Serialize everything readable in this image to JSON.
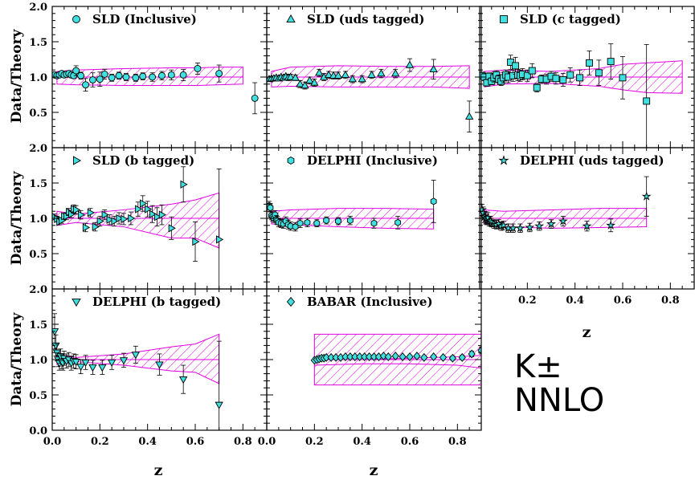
{
  "figure": {
    "ylabel": "Data/Theory",
    "xlabel": "z",
    "label_particle": "K±",
    "label_order": "NNLO"
  },
  "colors": {
    "marker_fill": "#40e0e0",
    "band": "#e000e0",
    "axes": "#000000"
  },
  "chart_data": [
    {
      "type": "scatter",
      "title": "SLD (Inclusive)",
      "marker": "circle",
      "xlim": [
        0,
        0.9
      ],
      "ylim": [
        0,
        2
      ],
      "x": [
        0.01,
        0.02,
        0.03,
        0.04,
        0.05,
        0.06,
        0.07,
        0.08,
        0.09,
        0.1,
        0.12,
        0.14,
        0.17,
        0.2,
        0.22,
        0.25,
        0.28,
        0.31,
        0.35,
        0.38,
        0.42,
        0.46,
        0.5,
        0.55,
        0.61,
        0.7,
        0.85
      ],
      "y": [
        1.03,
        1.02,
        1.03,
        1.05,
        1.03,
        1.04,
        1.05,
        1.03,
        1.02,
        1.09,
        1.02,
        0.89,
        0.96,
        0.97,
        1.04,
        0.99,
        1.02,
        1.0,
        0.99,
        1.01,
        1.0,
        1.02,
        1.03,
        1.03,
        1.12,
        1.05,
        0.7
      ],
      "err": [
        0.03,
        0.03,
        0.03,
        0.03,
        0.03,
        0.03,
        0.03,
        0.04,
        0.04,
        0.07,
        0.05,
        0.09,
        0.1,
        0.1,
        0.07,
        0.05,
        0.05,
        0.05,
        0.05,
        0.05,
        0.06,
        0.06,
        0.07,
        0.08,
        0.08,
        0.12,
        0.22
      ],
      "band_x": [
        0.02,
        0.1,
        0.3,
        0.5,
        0.6,
        0.7,
        0.8
      ],
      "band_lo": [
        0.9,
        0.89,
        0.88,
        0.88,
        0.88,
        0.89,
        0.9
      ],
      "band_hi": [
        1.08,
        1.1,
        1.12,
        1.13,
        1.13,
        1.14,
        1.14
      ]
    },
    {
      "type": "scatter",
      "title": "SLD (uds tagged)",
      "marker": "triangle-up",
      "xlim": [
        0,
        0.9
      ],
      "ylim": [
        0,
        2
      ],
      "x": [
        0.01,
        0.02,
        0.03,
        0.04,
        0.05,
        0.06,
        0.07,
        0.08,
        0.09,
        0.1,
        0.12,
        0.14,
        0.16,
        0.18,
        0.2,
        0.22,
        0.24,
        0.26,
        0.28,
        0.3,
        0.33,
        0.36,
        0.4,
        0.44,
        0.48,
        0.54,
        0.6,
        0.7,
        0.85
      ],
      "y": [
        0.97,
        0.98,
        0.98,
        0.99,
        0.98,
        1.0,
        0.99,
        1.01,
        0.99,
        1.0,
        0.99,
        0.9,
        0.88,
        0.95,
        0.92,
        1.06,
        1.0,
        1.03,
        1.02,
        1.02,
        1.03,
        0.97,
        0.97,
        1.03,
        1.05,
        1.05,
        1.17,
        1.11,
        0.44
      ],
      "err": [
        0.03,
        0.03,
        0.03,
        0.03,
        0.03,
        0.03,
        0.03,
        0.03,
        0.04,
        0.04,
        0.04,
        0.05,
        0.05,
        0.05,
        0.05,
        0.05,
        0.05,
        0.05,
        0.05,
        0.05,
        0.05,
        0.05,
        0.05,
        0.05,
        0.06,
        0.06,
        0.09,
        0.14,
        0.22
      ],
      "band_x": [
        0.02,
        0.1,
        0.3,
        0.5,
        0.7,
        0.85
      ],
      "band_lo": [
        0.86,
        0.87,
        0.86,
        0.86,
        0.86,
        0.84
      ],
      "band_hi": [
        1.08,
        1.14,
        1.16,
        1.15,
        1.15,
        1.16
      ]
    },
    {
      "type": "scatter",
      "title": "SLD (c tagged)",
      "marker": "square",
      "xlim": [
        0,
        0.9
      ],
      "ylim": [
        0,
        2
      ],
      "x": [
        0.01,
        0.02,
        0.03,
        0.04,
        0.05,
        0.06,
        0.07,
        0.08,
        0.09,
        0.1,
        0.11,
        0.12,
        0.13,
        0.14,
        0.15,
        0.16,
        0.17,
        0.18,
        0.2,
        0.22,
        0.24,
        0.26,
        0.28,
        0.3,
        0.32,
        0.35,
        0.38,
        0.42,
        0.46,
        0.5,
        0.55,
        0.6,
        0.7
      ],
      "y": [
        1.02,
        1.0,
        0.92,
        1.01,
        0.94,
        0.99,
        1.03,
        0.97,
        0.94,
        0.99,
        1.03,
        1.0,
        1.21,
        1.02,
        1.16,
        1.03,
        1.02,
        1.04,
        1.02,
        1.09,
        0.85,
        0.97,
        0.97,
        1.01,
        0.98,
        0.96,
        1.03,
        0.99,
        1.2,
        1.06,
        1.22,
        0.99,
        0.66
      ],
      "err": [
        0.05,
        0.05,
        0.05,
        0.05,
        0.05,
        0.06,
        0.06,
        0.06,
        0.06,
        0.07,
        0.07,
        0.08,
        0.1,
        0.08,
        0.12,
        0.08,
        0.08,
        0.08,
        0.08,
        0.1,
        0.06,
        0.06,
        0.07,
        0.07,
        0.08,
        0.09,
        0.1,
        0.11,
        0.17,
        0.18,
        0.25,
        0.3,
        0.8
      ],
      "band_x": [
        0.02,
        0.1,
        0.3,
        0.5,
        0.6,
        0.7,
        0.85
      ],
      "band_lo": [
        0.86,
        0.9,
        0.91,
        0.87,
        0.82,
        0.78,
        0.77
      ],
      "band_hi": [
        1.08,
        1.1,
        1.08,
        1.12,
        1.18,
        1.2,
        1.23
      ]
    },
    {
      "type": "scatter",
      "title": "SLD (b tagged)",
      "marker": "triangle-right",
      "xlim": [
        0,
        0.9
      ],
      "ylim": [
        0,
        2
      ],
      "x": [
        0.01,
        0.02,
        0.03,
        0.04,
        0.05,
        0.06,
        0.07,
        0.08,
        0.09,
        0.1,
        0.12,
        0.14,
        0.16,
        0.18,
        0.2,
        0.22,
        0.24,
        0.26,
        0.28,
        0.3,
        0.33,
        0.36,
        0.38,
        0.4,
        0.42,
        0.44,
        0.46,
        0.5,
        0.55,
        0.6,
        0.7
      ],
      "y": [
        1.02,
        0.99,
        0.95,
        0.97,
        1.03,
        1.03,
        1.09,
        1.06,
        1.13,
        1.12,
        1.05,
        0.87,
        1.08,
        0.88,
        0.96,
        1.05,
        0.98,
        0.96,
        1.0,
        0.99,
        1.0,
        1.13,
        1.21,
        1.13,
        1.06,
        1.02,
        1.05,
        0.86,
        1.48,
        0.67,
        0.7
      ],
      "err": [
        0.04,
        0.04,
        0.04,
        0.04,
        0.04,
        0.05,
        0.05,
        0.05,
        0.06,
        0.06,
        0.06,
        0.06,
        0.06,
        0.06,
        0.07,
        0.07,
        0.07,
        0.07,
        0.08,
        0.08,
        0.09,
        0.1,
        0.11,
        0.11,
        0.12,
        0.13,
        0.14,
        0.16,
        0.25,
        0.28,
        1.0
      ],
      "band_x": [
        0.02,
        0.1,
        0.3,
        0.5,
        0.6,
        0.7
      ],
      "band_lo": [
        0.9,
        0.94,
        0.88,
        0.72,
        0.72,
        0.58
      ],
      "band_hi": [
        1.1,
        1.06,
        1.12,
        1.2,
        1.26,
        1.36
      ]
    },
    {
      "type": "scatter",
      "title": "DELPHI (Inclusive)",
      "marker": "hexagon",
      "xlim": [
        0,
        0.9
      ],
      "ylim": [
        0,
        2
      ],
      "x": [
        0.01,
        0.015,
        0.02,
        0.025,
        0.03,
        0.035,
        0.04,
        0.045,
        0.05,
        0.06,
        0.07,
        0.08,
        0.09,
        0.1,
        0.12,
        0.14,
        0.17,
        0.21,
        0.25,
        0.3,
        0.35,
        0.45,
        0.55,
        0.7
      ],
      "y": [
        1.18,
        1.15,
        1.04,
        1.02,
        1.0,
        1.05,
        0.98,
        0.97,
        0.94,
        0.93,
        0.92,
        0.96,
        0.91,
        0.89,
        0.88,
        0.93,
        0.94,
        0.93,
        0.97,
        0.96,
        0.97,
        0.93,
        0.94,
        1.24
      ],
      "err": [
        0.06,
        0.06,
        0.06,
        0.06,
        0.06,
        0.06,
        0.06,
        0.06,
        0.06,
        0.06,
        0.06,
        0.06,
        0.06,
        0.06,
        0.06,
        0.06,
        0.06,
        0.05,
        0.05,
        0.05,
        0.06,
        0.07,
        0.09,
        0.3
      ],
      "band_x": [
        0.02,
        0.1,
        0.3,
        0.5,
        0.7
      ],
      "band_lo": [
        0.92,
        0.91,
        0.88,
        0.86,
        0.85
      ],
      "band_hi": [
        1.1,
        1.12,
        1.14,
        1.14,
        1.13
      ]
    },
    {
      "type": "scatter",
      "title": "DELPHI (uds tagged)",
      "marker": "star",
      "xlim": [
        0,
        0.9
      ],
      "ylim": [
        0,
        2
      ],
      "x": [
        0.01,
        0.015,
        0.02,
        0.025,
        0.03,
        0.035,
        0.04,
        0.045,
        0.05,
        0.06,
        0.07,
        0.08,
        0.09,
        0.1,
        0.12,
        0.14,
        0.17,
        0.21,
        0.25,
        0.3,
        0.35,
        0.45,
        0.55,
        0.7
      ],
      "y": [
        1.12,
        1.08,
        1.02,
        1.0,
        0.98,
        1.01,
        0.96,
        0.96,
        0.94,
        0.92,
        0.91,
        0.92,
        0.89,
        0.9,
        0.86,
        0.86,
        0.86,
        0.87,
        0.89,
        0.92,
        0.96,
        0.89,
        0.9,
        1.31
      ],
      "err": [
        0.08,
        0.08,
        0.08,
        0.08,
        0.07,
        0.07,
        0.07,
        0.07,
        0.06,
        0.06,
        0.06,
        0.06,
        0.06,
        0.06,
        0.06,
        0.06,
        0.06,
        0.06,
        0.06,
        0.06,
        0.07,
        0.07,
        0.09,
        0.28
      ],
      "band_x": [
        0.02,
        0.1,
        0.3,
        0.5,
        0.7
      ],
      "band_lo": [
        0.93,
        0.88,
        0.86,
        0.87,
        0.88
      ],
      "band_hi": [
        1.12,
        1.1,
        1.12,
        1.14,
        1.14
      ]
    },
    {
      "type": "scatter",
      "title": "DELPHI (b tagged)",
      "marker": "triangle-down",
      "xlim": [
        0,
        0.9
      ],
      "ylim": [
        0,
        2
      ],
      "x": [
        0.01,
        0.015,
        0.02,
        0.025,
        0.03,
        0.035,
        0.04,
        0.045,
        0.05,
        0.06,
        0.07,
        0.08,
        0.09,
        0.1,
        0.12,
        0.14,
        0.17,
        0.21,
        0.25,
        0.3,
        0.35,
        0.45,
        0.55,
        0.7
      ],
      "y": [
        1.4,
        1.2,
        1.1,
        1.0,
        0.95,
        1.05,
        0.97,
        0.95,
        1.02,
        0.98,
        1.0,
        0.95,
        0.98,
        0.97,
        0.9,
        0.96,
        0.89,
        0.89,
        0.96,
        0.99,
        1.07,
        0.93,
        0.72,
        0.36
      ],
      "err": [
        0.25,
        0.15,
        0.12,
        0.1,
        0.1,
        0.1,
        0.1,
        0.1,
        0.1,
        0.1,
        0.1,
        0.1,
        0.1,
        0.1,
        0.1,
        0.1,
        0.1,
        0.1,
        0.1,
        0.1,
        0.12,
        0.15,
        0.2,
        0.9
      ],
      "band_x": [
        0.02,
        0.1,
        0.3,
        0.5,
        0.6,
        0.7
      ],
      "band_lo": [
        0.93,
        0.97,
        0.92,
        0.84,
        0.82,
        0.66
      ],
      "band_hi": [
        1.08,
        1.03,
        1.08,
        1.18,
        1.22,
        1.36
      ]
    },
    {
      "type": "scatter",
      "title": "BABAR (Inclusive)",
      "marker": "diamond",
      "xlim": [
        0,
        0.9
      ],
      "ylim": [
        0,
        2
      ],
      "x": [
        0.2,
        0.21,
        0.22,
        0.23,
        0.24,
        0.25,
        0.27,
        0.29,
        0.31,
        0.33,
        0.35,
        0.37,
        0.39,
        0.41,
        0.43,
        0.45,
        0.47,
        0.49,
        0.51,
        0.54,
        0.57,
        0.6,
        0.63,
        0.66,
        0.7,
        0.74,
        0.78,
        0.82,
        0.86,
        0.9
      ],
      "y": [
        0.99,
        1.0,
        1.01,
        1.02,
        1.02,
        1.03,
        1.03,
        1.03,
        1.03,
        1.04,
        1.04,
        1.04,
        1.04,
        1.04,
        1.04,
        1.04,
        1.04,
        1.05,
        1.04,
        1.05,
        1.04,
        1.04,
        1.05,
        1.03,
        1.04,
        1.03,
        1.02,
        1.03,
        1.08,
        1.13
      ],
      "err": [
        0.01,
        0.01,
        0.01,
        0.01,
        0.01,
        0.01,
        0.01,
        0.01,
        0.01,
        0.01,
        0.01,
        0.01,
        0.01,
        0.01,
        0.01,
        0.01,
        0.01,
        0.01,
        0.01,
        0.01,
        0.01,
        0.01,
        0.01,
        0.02,
        0.02,
        0.02,
        0.03,
        0.03,
        0.04,
        0.05
      ],
      "band_x": [
        0.2,
        0.4,
        0.6,
        0.8,
        0.9
      ],
      "band_lo": [
        0.64,
        0.64,
        0.64,
        0.64,
        0.64
      ],
      "band_hi": [
        1.36,
        1.36,
        1.36,
        1.36,
        1.36
      ],
      "band_inner_lo": [
        0.92,
        0.94,
        0.94,
        0.92,
        0.88
      ],
      "band_inner_hi": [
        1.0,
        1.0,
        1.02,
        1.04,
        1.06
      ]
    }
  ]
}
